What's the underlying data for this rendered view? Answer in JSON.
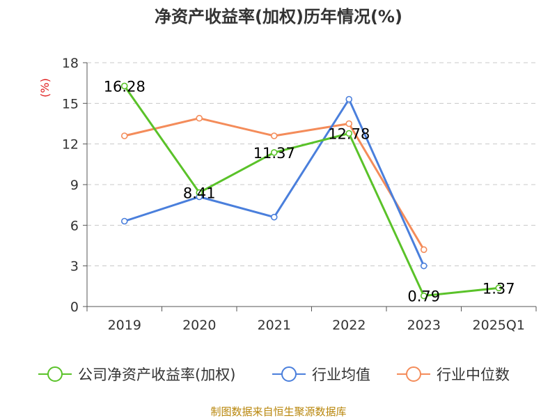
{
  "chart_data": {
    "type": "line",
    "title": "净资产收益率(加权)历年情况(%)",
    "ylabel": "(%)",
    "xlabel": "",
    "categories": [
      "2019",
      "2020",
      "2021",
      "2022",
      "2023",
      "2025Q1"
    ],
    "ylim": [
      0,
      18
    ],
    "yticks": [
      0,
      3,
      6,
      9,
      12,
      15,
      18
    ],
    "grid": "horizontal dashed",
    "legend": "bottom",
    "series": [
      {
        "name": "公司净资产收益率(加权)",
        "color": "#5ac229",
        "values": [
          16.28,
          8.41,
          11.37,
          12.78,
          0.79,
          1.37
        ],
        "labels": [
          "16.28",
          "8.41",
          "11.37",
          "12.78",
          "0.79",
          "1.37"
        ]
      },
      {
        "name": "行业均值",
        "color": "#4a7fdc",
        "values": [
          6.3,
          8.1,
          6.6,
          15.3,
          3.0,
          null
        ]
      },
      {
        "name": "行业中位数",
        "color": "#f48c5a",
        "values": [
          12.6,
          13.9,
          12.6,
          13.5,
          4.2,
          null
        ]
      }
    ]
  },
  "source": "制图数据来自恒生聚源数据库"
}
